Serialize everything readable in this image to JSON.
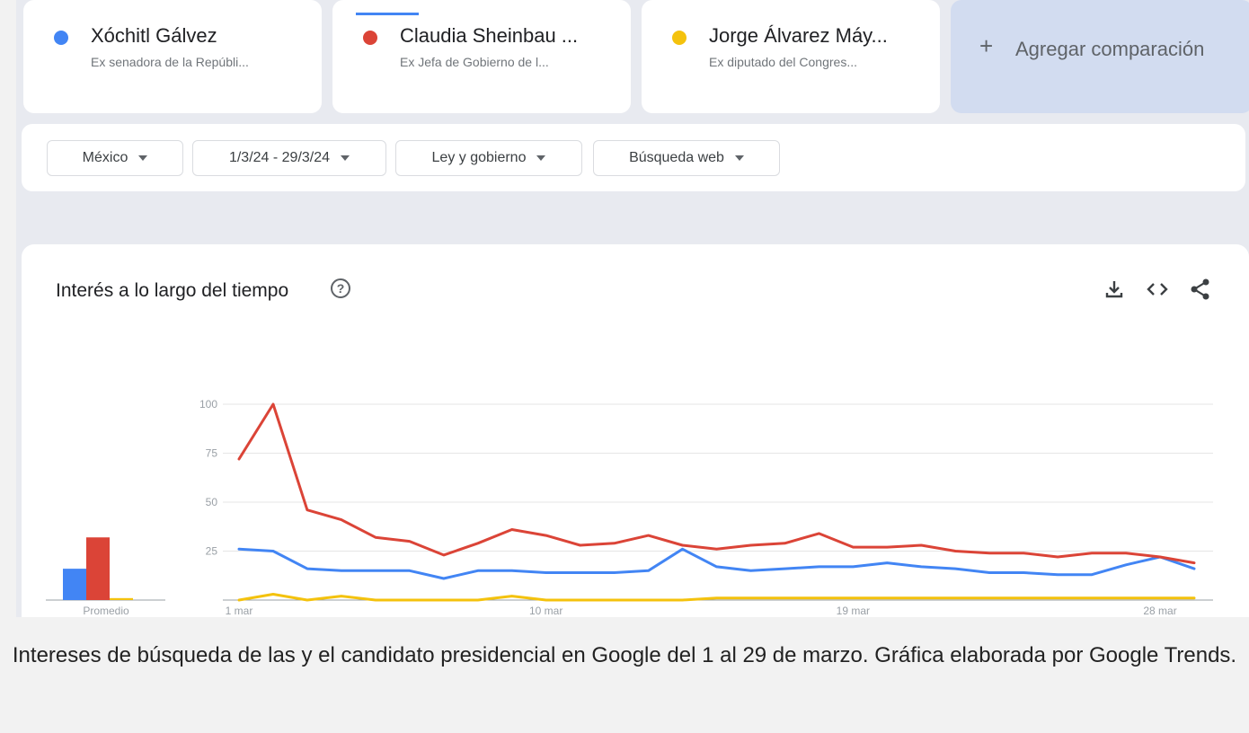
{
  "comparison": [
    {
      "name": "Xóchitl Gálvez",
      "description": "Ex senadora de la Repúbli...",
      "color": "#4285f4"
    },
    {
      "name": "Claudia Sheinbau ...",
      "description": "Ex Jefa de Gobierno de l...",
      "color": "#db4437"
    },
    {
      "name": "Jorge Álvarez Máy...",
      "description": "Ex diputado del Congres...",
      "color": "#f4c20d"
    }
  ],
  "add_comparison": {
    "icon": "+",
    "label": "Agregar comparación"
  },
  "filters": [
    {
      "label": "México"
    },
    {
      "label": "1/3/24 - 29/3/24"
    },
    {
      "label": "Ley y gobierno"
    },
    {
      "label": "Búsqueda web"
    }
  ],
  "panel": {
    "title": "Interés a lo largo del tiempo",
    "help_icon": "?"
  },
  "caption": "Intereses de búsqueda de las y el candidato presidencial en Google del 1 al 29 de marzo. Gráfica elaborada por Google Trends.",
  "chart_data": {
    "type": "line",
    "title": "Interés a lo largo del tiempo",
    "ylim": [
      0,
      100
    ],
    "yticks": [
      25,
      50,
      75,
      100
    ],
    "x_labels": [
      {
        "day": 1,
        "label": "1 mar"
      },
      {
        "day": 10,
        "label": "10 mar"
      },
      {
        "day": 19,
        "label": "19 mar"
      },
      {
        "day": 28,
        "label": "28 mar"
      }
    ],
    "x": [
      1,
      2,
      3,
      4,
      5,
      6,
      7,
      8,
      9,
      10,
      11,
      12,
      13,
      14,
      15,
      16,
      17,
      18,
      19,
      20,
      21,
      22,
      23,
      24,
      25,
      26,
      27,
      28,
      29
    ],
    "series": [
      {
        "name": "Xóchitl Gálvez",
        "color": "#4285f4",
        "values": [
          26,
          25,
          16,
          15,
          15,
          15,
          11,
          15,
          15,
          14,
          14,
          14,
          15,
          26,
          17,
          15,
          16,
          17,
          17,
          19,
          17,
          16,
          14,
          14,
          13,
          13,
          18,
          22,
          16
        ]
      },
      {
        "name": "Claudia Sheinbau ...",
        "color": "#db4437",
        "values": [
          72,
          100,
          46,
          41,
          32,
          30,
          23,
          29,
          36,
          33,
          28,
          29,
          33,
          28,
          26,
          28,
          29,
          34,
          27,
          27,
          28,
          25,
          24,
          24,
          22,
          24,
          24,
          22,
          19
        ]
      },
      {
        "name": "Jorge Álvarez Máy...",
        "color": "#f4c20d",
        "values": [
          0,
          3,
          0,
          2,
          0,
          0,
          0,
          0,
          2,
          0,
          0,
          0,
          0,
          0,
          1,
          1,
          1,
          1,
          1,
          1,
          1,
          1,
          1,
          1,
          1,
          1,
          1,
          1,
          1
        ]
      }
    ],
    "average": {
      "label": "Promedio",
      "values": [
        16,
        32,
        1
      ]
    }
  }
}
